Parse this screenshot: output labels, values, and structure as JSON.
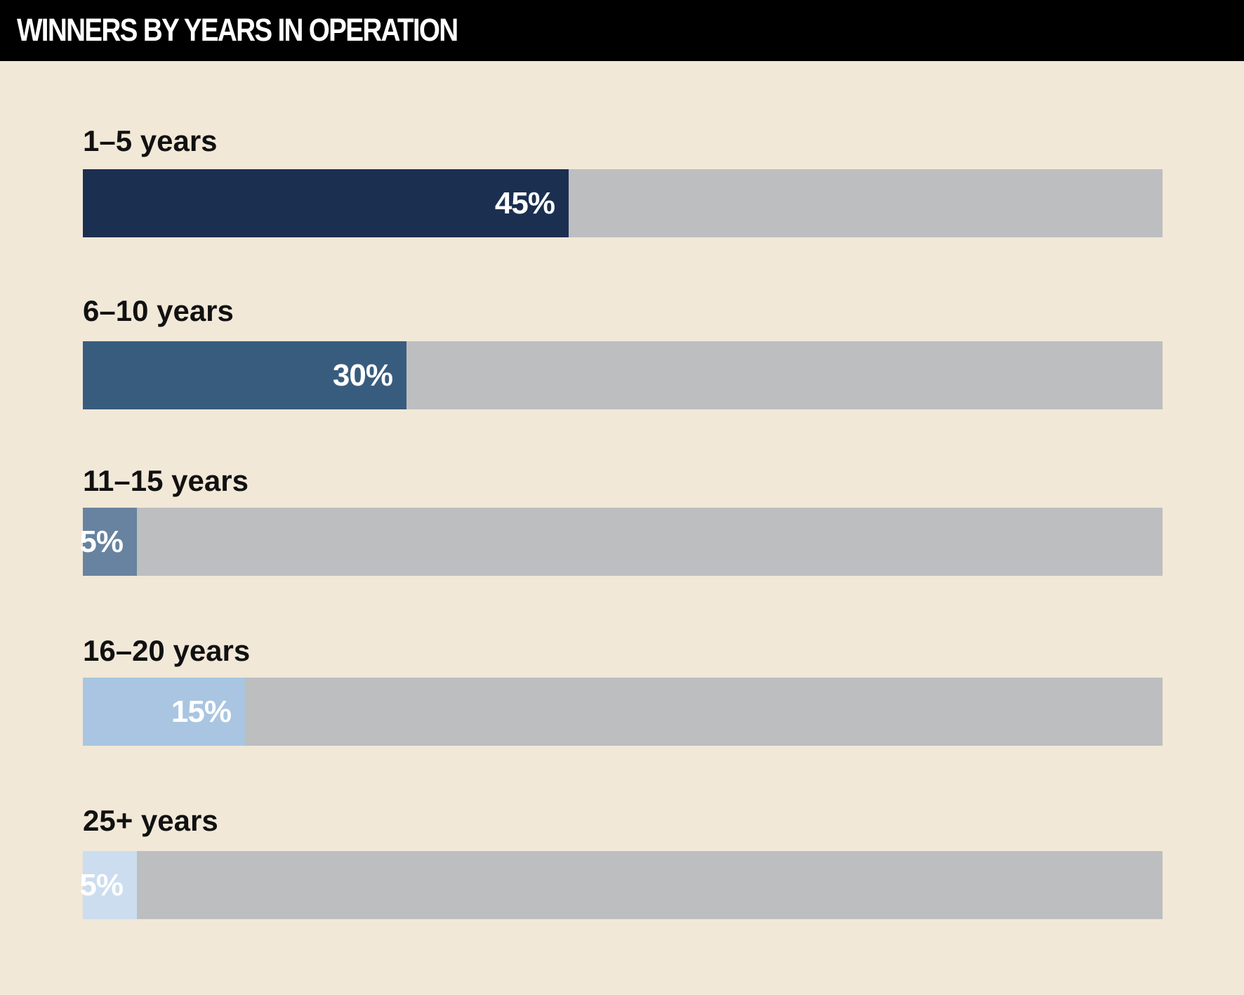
{
  "header": {
    "title": "WINNERS BY YEARS IN OPERATION"
  },
  "chart_data": {
    "type": "bar",
    "orientation": "horizontal",
    "title": "WINNERS BY YEARS IN OPERATION",
    "categories": [
      "1–5 years",
      "6–10 years",
      "11–15 years",
      "16–20 years",
      "25+ years"
    ],
    "values": [
      45,
      30,
      5,
      15,
      5
    ],
    "value_labels": [
      "45%",
      "30%",
      "5%",
      "15%",
      "5%"
    ],
    "unit": "%",
    "xlim": [
      0,
      100
    ],
    "grid": false,
    "legend": "none",
    "bar_colors": [
      "#1b2f50",
      "#385c7e",
      "#6783a0",
      "#a9c5e1",
      "#cbddee"
    ],
    "track_color": "#bdbec0",
    "background_color": "#f1e8d8",
    "header_color": "#000000"
  }
}
